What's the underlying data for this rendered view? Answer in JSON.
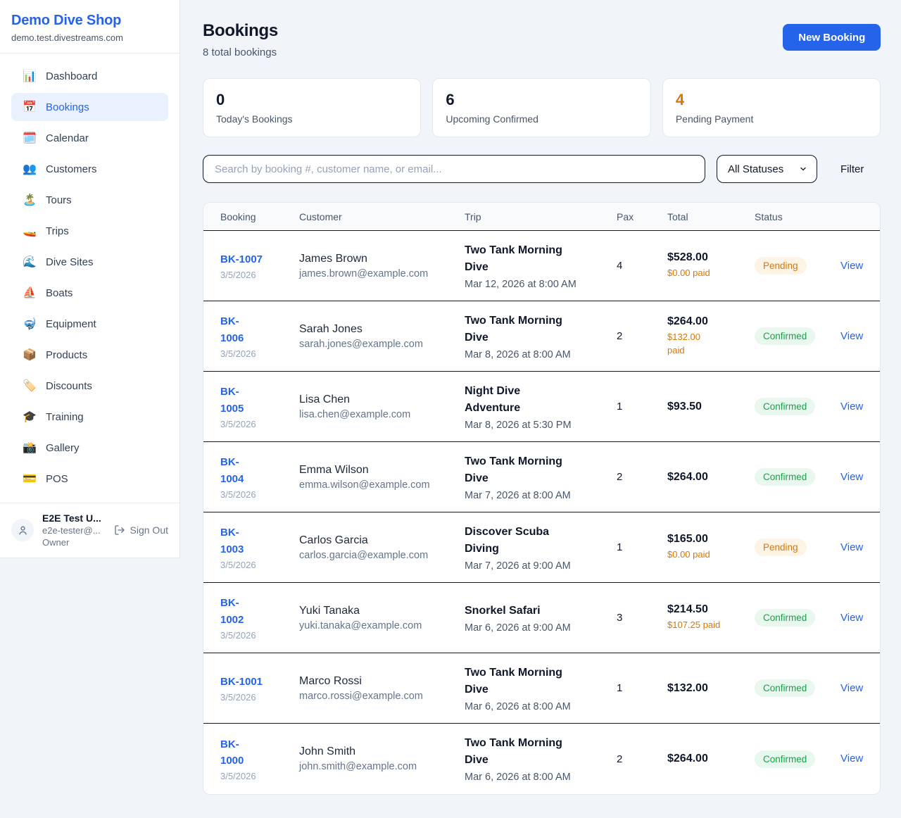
{
  "brand": {
    "name": "Demo Dive Shop",
    "domain": "demo.test.divestreams.com"
  },
  "sidebar": {
    "items": [
      {
        "label": "Dashboard",
        "slug": "dashboard",
        "icon": "bar-chart-icon",
        "emoji": "📊",
        "active": false
      },
      {
        "label": "Bookings",
        "slug": "bookings",
        "icon": "bookings-calendar-icon",
        "emoji": "📅",
        "active": true
      },
      {
        "label": "Calendar",
        "slug": "calendar",
        "icon": "spiral-calendar-icon",
        "emoji": "🗓️",
        "active": false
      },
      {
        "label": "Customers",
        "slug": "customers",
        "icon": "people-icon",
        "emoji": "👥",
        "active": false
      },
      {
        "label": "Tours",
        "slug": "tours",
        "icon": "island-icon",
        "emoji": "🏝️",
        "active": false
      },
      {
        "label": "Trips",
        "slug": "trips",
        "icon": "speedboat-icon",
        "emoji": "🚤",
        "active": false
      },
      {
        "label": "Dive Sites",
        "slug": "dive-sites",
        "icon": "wave-icon",
        "emoji": "🌊",
        "active": false
      },
      {
        "label": "Boats",
        "slug": "boats",
        "icon": "sailboat-icon",
        "emoji": "⛵",
        "active": false
      },
      {
        "label": "Equipment",
        "slug": "equipment",
        "icon": "diving-mask-icon",
        "emoji": "🤿",
        "active": false
      },
      {
        "label": "Products",
        "slug": "products",
        "icon": "package-icon",
        "emoji": "📦",
        "active": false
      },
      {
        "label": "Discounts",
        "slug": "discounts",
        "icon": "tag-icon",
        "emoji": "🏷️",
        "active": false
      },
      {
        "label": "Training",
        "slug": "training",
        "icon": "graduation-cap-icon",
        "emoji": "🎓",
        "active": false
      },
      {
        "label": "Gallery",
        "slug": "gallery",
        "icon": "camera-icon",
        "emoji": "📸",
        "active": false
      },
      {
        "label": "POS",
        "slug": "pos",
        "icon": "credit-card-icon",
        "emoji": "💳",
        "active": false
      }
    ],
    "user": {
      "name": "E2E Test U...",
      "email": "e2e-tester@...",
      "role": "Owner",
      "sign_out_label": "Sign Out"
    }
  },
  "header": {
    "title": "Bookings",
    "subtitle": "8 total bookings",
    "new_booking_label": "New Booking"
  },
  "stats": [
    {
      "value": "0",
      "label": "Today's Bookings",
      "color": "#0f172a"
    },
    {
      "value": "6",
      "label": "Upcoming Confirmed",
      "color": "#0f172a"
    },
    {
      "value": "4",
      "label": "Pending Payment",
      "color": "#d97706"
    }
  ],
  "filters": {
    "search_placeholder": "Search by booking #, customer name, or email...",
    "status_selected": "All Statuses",
    "filter_label": "Filter"
  },
  "table": {
    "columns": [
      "Booking",
      "Customer",
      "Trip",
      "Pax",
      "Total",
      "Status"
    ],
    "rows": [
      {
        "id": "BK-1007",
        "id_two_lines": false,
        "date": "3/5/2026",
        "customer": "James Brown",
        "email": "james.brown@example.com",
        "trip": "Two Tank Morning Dive",
        "trip_time": "Mar 12, 2026 at 8:00 AM",
        "pax": "4",
        "total": "$528.00",
        "paid": "$0.00 paid",
        "paid_two_lines": false,
        "status": "Pending",
        "action": "View"
      },
      {
        "id": "BK-1006",
        "id_two_lines": true,
        "date": "3/5/2026",
        "customer": "Sarah Jones",
        "email": "sarah.jones@example.com",
        "trip": "Two Tank Morning Dive",
        "trip_time": "Mar 8, 2026 at 8:00 AM",
        "pax": "2",
        "total": "$264.00",
        "paid": "$132.00 paid",
        "paid_two_lines": true,
        "status": "Confirmed",
        "action": "View"
      },
      {
        "id": "BK-1005",
        "id_two_lines": true,
        "date": "3/5/2026",
        "customer": "Lisa Chen",
        "email": "lisa.chen@example.com",
        "trip": "Night Dive Adventure",
        "trip_time": "Mar 8, 2026 at 5:30 PM",
        "pax": "1",
        "total": "$93.50",
        "paid": null,
        "paid_two_lines": false,
        "status": "Confirmed",
        "action": "View"
      },
      {
        "id": "BK-1004",
        "id_two_lines": true,
        "date": "3/5/2026",
        "customer": "Emma Wilson",
        "email": "emma.wilson@example.com",
        "trip": "Two Tank Morning Dive",
        "trip_time": "Mar 7, 2026 at 8:00 AM",
        "pax": "2",
        "total": "$264.00",
        "paid": null,
        "paid_two_lines": false,
        "status": "Confirmed",
        "action": "View"
      },
      {
        "id": "BK-1003",
        "id_two_lines": true,
        "date": "3/5/2026",
        "customer": "Carlos Garcia",
        "email": "carlos.garcia@example.com",
        "trip": "Discover Scuba Diving",
        "trip_time": "Mar 7, 2026 at 9:00 AM",
        "pax": "1",
        "total": "$165.00",
        "paid": "$0.00 paid",
        "paid_two_lines": false,
        "status": "Pending",
        "action": "View"
      },
      {
        "id": "BK-1002",
        "id_two_lines": true,
        "date": "3/5/2026",
        "customer": "Yuki Tanaka",
        "email": "yuki.tanaka@example.com",
        "trip": "Snorkel Safari",
        "trip_time": "Mar 6, 2026 at 9:00 AM",
        "pax": "3",
        "total": "$214.50",
        "paid": "$107.25 paid",
        "paid_two_lines": false,
        "status": "Confirmed",
        "action": "View"
      },
      {
        "id": "BK-1001",
        "id_two_lines": false,
        "date": "3/5/2026",
        "customer": "Marco Rossi",
        "email": "marco.rossi@example.com",
        "trip": "Two Tank Morning Dive",
        "trip_time": "Mar 6, 2026 at 8:00 AM",
        "pax": "1",
        "total": "$132.00",
        "paid": null,
        "paid_two_lines": false,
        "status": "Confirmed",
        "action": "View"
      },
      {
        "id": "BK-1000",
        "id_two_lines": true,
        "date": "3/5/2026",
        "customer": "John Smith",
        "email": "john.smith@example.com",
        "trip": "Two Tank Morning Dive",
        "trip_time": "Mar 6, 2026 at 8:00 AM",
        "pax": "2",
        "total": "$264.00",
        "paid": null,
        "paid_two_lines": false,
        "status": "Confirmed",
        "action": "View"
      }
    ]
  },
  "colors": {
    "accent_blue": "#2563eb",
    "pending_text": "#d97706",
    "pending_bg": "#fdf4e5",
    "confirmed_text": "#16a34a",
    "confirmed_bg": "#e8f8ee",
    "paid_text": "#d97706"
  }
}
